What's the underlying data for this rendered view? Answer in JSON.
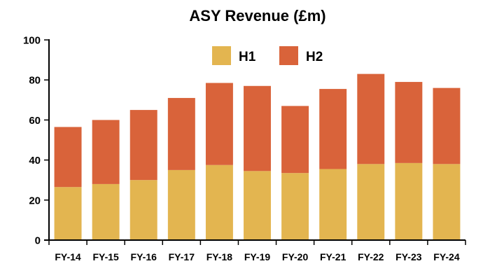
{
  "chart_data": {
    "type": "bar",
    "stacked": true,
    "title": "ASY Revenue (£m)",
    "xlabel": "",
    "ylabel": "",
    "ylim": [
      0,
      100
    ],
    "yticks": [
      0,
      20,
      40,
      60,
      80,
      100
    ],
    "grid": false,
    "legend_position": "top-center",
    "categories": [
      "FY-14",
      "FY-15",
      "FY-16",
      "FY-17",
      "FY-18",
      "FY-19",
      "FY-20",
      "FY-21",
      "FY-22",
      "FY-23",
      "FY-24"
    ],
    "series": [
      {
        "name": "H1",
        "color": "#E3B550",
        "values": [
          26.5,
          28,
          30,
          35,
          37.5,
          34.5,
          33.5,
          35.5,
          38,
          38.5,
          38
        ]
      },
      {
        "name": "H2",
        "color": "#D9633A",
        "values": [
          30,
          32,
          35,
          36,
          41,
          42.5,
          33.5,
          40,
          45,
          40.5,
          38
        ]
      }
    ]
  }
}
